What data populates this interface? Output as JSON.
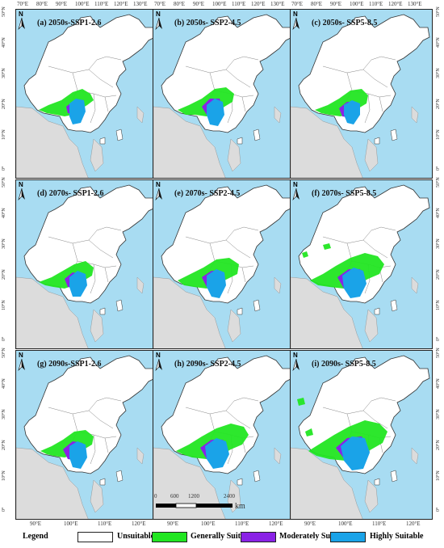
{
  "panels": [
    {
      "label": "(a) 2050s-SSP1-2.6"
    },
    {
      "label": "(b) 2050s- SSP2-4.5"
    },
    {
      "label": "(c) 2050s- SSP5-8.5"
    },
    {
      "label": "(d) 2070s- SSP1-2.6"
    },
    {
      "label": "(e) 2070s- SSP2-4.5"
    },
    {
      "label": "(f) 2070s- SSP5-8.5"
    },
    {
      "label": "(g) 2090s-SSP1-2.6"
    },
    {
      "label": "(h) 2090s- SSP2-4.5"
    },
    {
      "label": "(i) 2090s- SSP5-8.5"
    }
  ],
  "top_ticks": [
    "70°E",
    "80°E",
    "90°E",
    "100°E",
    "110°E",
    "120°E",
    "130°E"
  ],
  "bottom_ticks": [
    "90°E",
    "100°E",
    "110°E",
    "120°E"
  ],
  "lat_ticks": [
    "50°N",
    "40°N",
    "30°N",
    "20°N",
    "10°N",
    "0°"
  ],
  "north_label": "N",
  "scale": {
    "labels": [
      "0",
      "600",
      "1200",
      "2400"
    ],
    "unit": "km"
  },
  "legend": {
    "title": "Legend",
    "items": [
      {
        "label": "Unsuitable",
        "color": "#ffffff"
      },
      {
        "label": "Generally Suitable",
        "color": "#22e622"
      },
      {
        "label": "Moderately Suitable",
        "color": "#8a22e6"
      },
      {
        "label": "Highly Suitable",
        "color": "#1aa3e8"
      }
    ]
  },
  "colors": {
    "ocean": "#a8dcf2",
    "land_other": "#dcdcdc",
    "china": "#ffffff"
  }
}
